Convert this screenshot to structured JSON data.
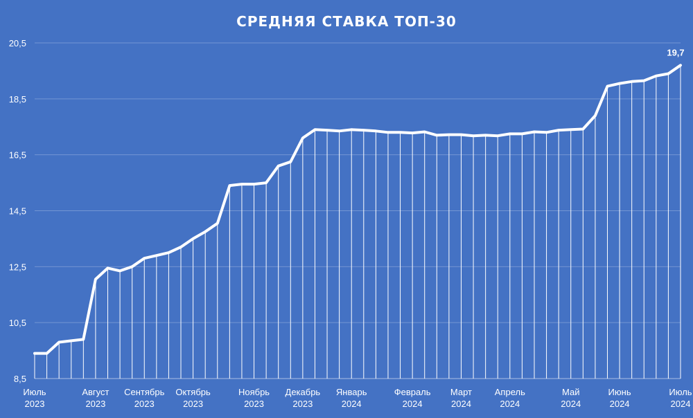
{
  "chart_data": {
    "type": "line",
    "title": "СРЕДНЯЯ СТАВКА ТОП-30",
    "xlabel": "",
    "ylabel": "",
    "ylim": [
      8.5,
      20.5
    ],
    "yticks": [
      "8,5",
      "10,5",
      "12,5",
      "14,5",
      "16,5",
      "18,5",
      "20,5"
    ],
    "grid": true,
    "legend": "none",
    "line_color": "#ffffff",
    "background_color": "#4472C4",
    "drop_lines": true,
    "x_labels": [
      {
        "month": "Июль",
        "year": "2023",
        "index": 1
      },
      {
        "month": "Август",
        "year": "2023",
        "index": 6
      },
      {
        "month": "Сентябрь",
        "year": "2023",
        "index": 10
      },
      {
        "month": "Октябрь",
        "year": "2023",
        "index": 14
      },
      {
        "month": "Ноябрь",
        "year": "2023",
        "index": 19
      },
      {
        "month": "Декабрь",
        "year": "2023",
        "index": 23
      },
      {
        "month": "Январь",
        "year": "2024",
        "index": 27
      },
      {
        "month": "Февраль",
        "year": "2024",
        "index": 32
      },
      {
        "month": "Март",
        "year": "2024",
        "index": 36
      },
      {
        "month": "Апрель",
        "year": "2024",
        "index": 40
      },
      {
        "month": "Май",
        "year": "2024",
        "index": 45
      },
      {
        "month": "Июнь",
        "year": "2024",
        "index": 49
      },
      {
        "month": "Июль",
        "year": "2024",
        "index": 54
      }
    ],
    "values": [
      9.4,
      9.4,
      9.8,
      9.85,
      9.9,
      12.05,
      12.45,
      12.35,
      12.5,
      12.8,
      12.9,
      13.0,
      13.2,
      13.5,
      13.75,
      14.05,
      15.4,
      15.45,
      15.45,
      15.5,
      16.1,
      16.25,
      17.1,
      17.4,
      17.38,
      17.35,
      17.4,
      17.38,
      17.35,
      17.3,
      17.3,
      17.28,
      17.32,
      17.2,
      17.22,
      17.22,
      17.18,
      17.2,
      17.18,
      17.25,
      17.25,
      17.32,
      17.3,
      17.38,
      17.4,
      17.42,
      17.9,
      18.95,
      19.05,
      19.12,
      19.15,
      19.32,
      19.4,
      19.7
    ],
    "last_label": "19,7"
  }
}
